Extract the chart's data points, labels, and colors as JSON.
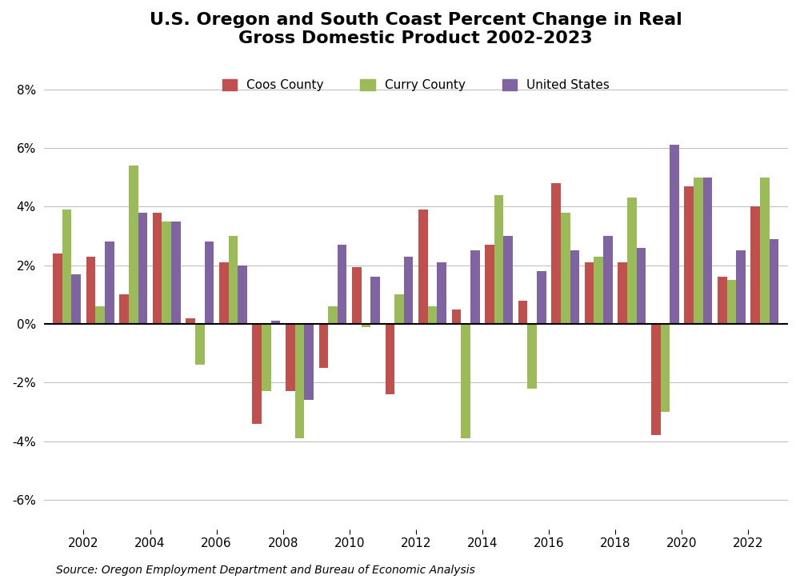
{
  "title": "U.S. Oregon and South Coast Percent Change in Real\nGross Domestic Product 2002-2023",
  "source": "Source: Oregon Employment Department and Bureau of Economic Analysis",
  "years": [
    2002,
    2003,
    2004,
    2005,
    2006,
    2007,
    2008,
    2009,
    2010,
    2011,
    2012,
    2013,
    2014,
    2015,
    2016,
    2017,
    2018,
    2019,
    2020,
    2021,
    2022,
    2023
  ],
  "coos": [
    2.4,
    2.3,
    1.0,
    3.8,
    0.2,
    2.1,
    -3.4,
    -2.3,
    -1.5,
    1.95,
    -2.4,
    3.9,
    0.5,
    2.7,
    0.8,
    4.8,
    2.1,
    2.1,
    -3.8,
    4.7,
    1.6,
    4.0
  ],
  "curry": [
    3.9,
    0.6,
    5.4,
    3.5,
    -1.4,
    3.0,
    -2.3,
    -3.9,
    0.6,
    -0.1,
    1.0,
    0.6,
    -3.9,
    4.4,
    -2.2,
    3.8,
    2.3,
    4.3,
    -3.0,
    5.0,
    1.5,
    5.0
  ],
  "us": [
    1.7,
    2.8,
    3.8,
    3.5,
    2.8,
    2.0,
    0.1,
    -2.6,
    2.7,
    1.6,
    2.3,
    2.1,
    2.5,
    3.0,
    1.8,
    2.5,
    3.0,
    2.6,
    6.1,
    5.0,
    2.5,
    2.9
  ],
  "coos_color": "#c0504d",
  "curry_color": "#9bbb59",
  "us_color": "#8064a2",
  "background_color": "#ffffff",
  "grid_color": "#c0c0c0",
  "ylim": [
    -7,
    9
  ],
  "yticks": [
    -6,
    -4,
    -2,
    0,
    2,
    4,
    6,
    8
  ],
  "ytick_labels": [
    "-6%",
    "-4%",
    "-2%",
    "0%",
    "2%",
    "4%",
    "6%",
    "8%"
  ],
  "bar_width": 0.28,
  "legend_labels": [
    "Coos County",
    "Curry County",
    "United States"
  ],
  "title_fontsize": 16,
  "axis_fontsize": 11,
  "source_fontsize": 10,
  "xtick_labels": [
    "2002",
    "2004",
    "2006",
    "2008",
    "2010",
    "2012",
    "2014",
    "2016",
    "2018",
    "2020",
    "2022"
  ]
}
